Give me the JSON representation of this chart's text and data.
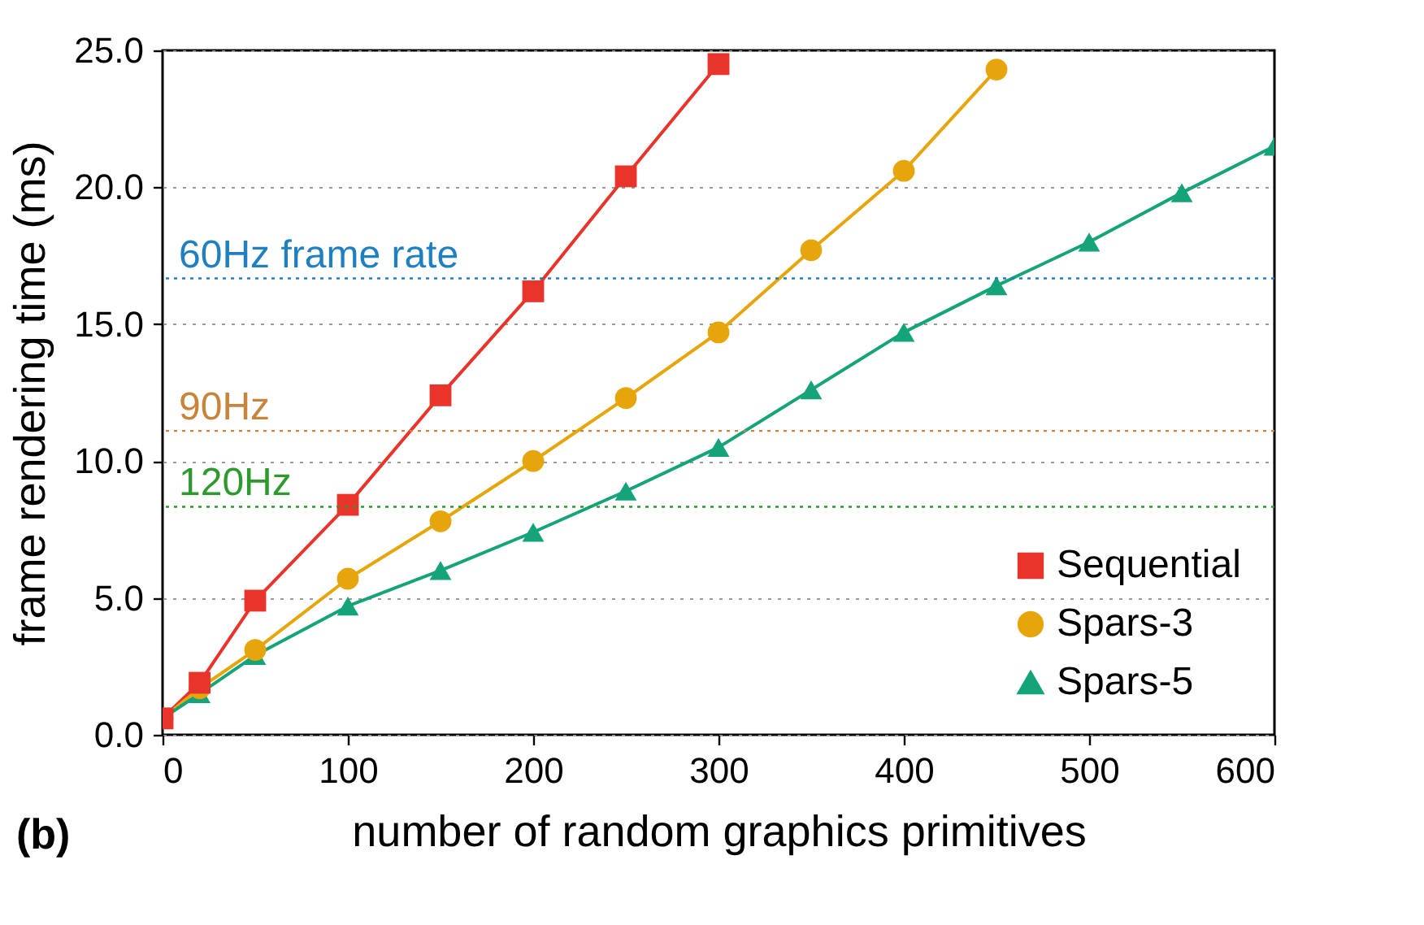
{
  "chart_data": {
    "type": "line",
    "xlabel": "number of random graphics primitives",
    "ylabel": "frame rendering time (ms)",
    "xlim": [
      0,
      600
    ],
    "xticks": [
      0,
      100,
      200,
      300,
      400,
      500,
      600
    ],
    "ylim": [
      0,
      25
    ],
    "yticks": [
      {
        "value": 0,
        "label": "0.0"
      },
      {
        "value": 5,
        "label": "5.0"
      },
      {
        "value": 10,
        "label": "10.0"
      },
      {
        "value": 15,
        "label": "15.0"
      },
      {
        "value": 20,
        "label": "20.0"
      },
      {
        "value": 25,
        "label": "25.0"
      }
    ],
    "grid": "y",
    "legend": "bottom right",
    "line_style": "solid",
    "series": [
      {
        "name": "Sequential",
        "color": "#e8342a",
        "marker": "square",
        "x": [
          0,
          20,
          50,
          100,
          150,
          200,
          250,
          300
        ],
        "values": [
          0.6,
          1.9,
          4.9,
          8.4,
          12.4,
          16.2,
          20.4,
          24.5
        ]
      },
      {
        "name": "Spars-3",
        "color": "#e6a50a",
        "marker": "circle",
        "x": [
          0,
          20,
          50,
          100,
          150,
          200,
          250,
          300,
          350,
          400,
          450
        ],
        "values": [
          0.6,
          1.7,
          3.1,
          5.7,
          7.8,
          10.0,
          12.3,
          14.7,
          17.7,
          20.6,
          24.3
        ]
      },
      {
        "name": "Spars-5",
        "color": "#15a37a",
        "marker": "triangle",
        "x": [
          0,
          20,
          50,
          100,
          150,
          200,
          250,
          300,
          350,
          400,
          450,
          500,
          550,
          600
        ],
        "values": [
          0.6,
          1.5,
          2.9,
          4.7,
          6.0,
          7.4,
          8.9,
          10.5,
          12.6,
          14.7,
          16.4,
          18.0,
          19.8,
          21.5
        ]
      }
    ],
    "ref_lines": [
      {
        "axis": "y",
        "value": 16.67,
        "label": "60Hz frame rate",
        "color": "#1f7fc0",
        "line_style": "dotted"
      },
      {
        "axis": "y",
        "value": 11.1,
        "label": "90Hz",
        "color": "#c8843b",
        "line_style": "dotted"
      },
      {
        "axis": "y",
        "value": 8.33,
        "label": "120Hz",
        "color": "#2e9a2e",
        "line_style": "dotted"
      }
    ],
    "annotations": [
      "(b)"
    ]
  }
}
